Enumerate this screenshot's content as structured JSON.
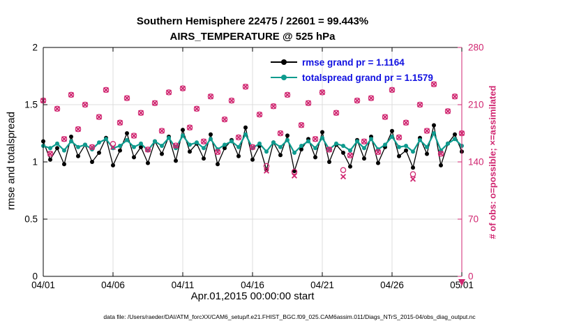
{
  "title": {
    "line1": "Southern Hemisphere 22475 / 22601 = 99.443%",
    "line2": "AIRS_TEMPERATURE @ 525 hPa"
  },
  "caption": "data file: /Users/raeder/DAI/ATM_forcXX/CAM6_setup/f.e21.FHIST_BGC.f09_025.CAM6assim.011/Diags_NTrS_2015-04/obs_diag_output.nc",
  "legend": [
    {
      "label": "rmse grand pr = 1.1164",
      "color": "#000000",
      "marker": "filled-circle"
    },
    {
      "label": "totalspread grand pr = 1.1579",
      "color": "#0e9b8e",
      "marker": "filled-circle"
    }
  ],
  "colors": {
    "background": "#ffffff",
    "grid": "#dcdcdc",
    "axis": "#000000",
    "rmse": "#000000",
    "totalspread": "#0e9b8e",
    "obs": "#d02670",
    "legend_text": "#1010e0"
  },
  "chart_data": {
    "type": "line",
    "title": "Southern Hemisphere 22475 / 22601 = 99.443%",
    "subtitle": "AIRS_TEMPERATURE @ 525 hPa",
    "grid": true,
    "legend_position": "top-center-inside",
    "x_axis": {
      "label": "Apr.01,2015 00:00:00 start",
      "range": [
        1,
        31
      ],
      "ticks": [
        1,
        6,
        11,
        16,
        21,
        26,
        31
      ],
      "tick_labels": [
        "04/01",
        "04/06",
        "04/11",
        "04/16",
        "04/21",
        "04/26",
        "05/01"
      ]
    },
    "y_left": {
      "label": "rmse and totalspread",
      "range": [
        0,
        2
      ],
      "ticks": [
        0,
        0.5,
        1,
        1.5,
        2
      ],
      "tick_labels": [
        "0",
        "0.5",
        "1",
        "1.5",
        "2"
      ]
    },
    "y_right": {
      "label": "# of obs: o=possible; ×=assimilated",
      "range": [
        0,
        280
      ],
      "ticks": [
        0,
        70,
        140,
        210,
        280
      ],
      "tick_labels": [
        "0",
        "70",
        "140",
        "210",
        "280"
      ],
      "color": "#d02670"
    },
    "x": {
      "start": 1,
      "step": 0.5,
      "count": 61
    },
    "series": [
      {
        "name": "rmse",
        "axis": "left",
        "color": "#000000",
        "marker": "filled-circle",
        "grand_mean": 1.1164,
        "values": [
          1.18,
          1.02,
          1.12,
          0.98,
          1.22,
          1.05,
          1.15,
          1.0,
          1.08,
          1.21,
          0.97,
          1.1,
          1.25,
          1.04,
          1.13,
          0.99,
          1.18,
          1.07,
          1.22,
          1.01,
          1.28,
          1.09,
          1.16,
          1.03,
          1.24,
          0.98,
          1.12,
          1.19,
          1.05,
          1.3,
          1.02,
          1.14,
          0.93,
          1.17,
          1.06,
          1.23,
          0.92,
          1.11,
          1.2,
          1.04,
          1.26,
          1.0,
          1.15,
          1.08,
          0.96,
          1.19,
          1.03,
          1.22,
          0.99,
          1.13,
          1.27,
          1.05,
          1.1,
          0.95,
          1.21,
          1.07,
          1.32,
          0.97,
          1.16,
          1.24,
          1.09
        ]
      },
      {
        "name": "totalspread",
        "axis": "left",
        "color": "#0e9b8e",
        "marker": "filled-circle",
        "grand_mean": 1.1579,
        "values": [
          1.14,
          1.12,
          1.16,
          1.1,
          1.18,
          1.13,
          1.15,
          1.11,
          1.17,
          1.2,
          1.12,
          1.14,
          1.19,
          1.13,
          1.16,
          1.1,
          1.18,
          1.14,
          1.21,
          1.12,
          1.23,
          1.15,
          1.17,
          1.12,
          1.2,
          1.11,
          1.15,
          1.18,
          1.13,
          1.24,
          1.12,
          1.16,
          1.09,
          1.17,
          1.13,
          1.19,
          1.08,
          1.14,
          1.18,
          1.12,
          1.21,
          1.11,
          1.16,
          1.14,
          1.1,
          1.18,
          1.12,
          1.2,
          1.11,
          1.15,
          1.22,
          1.13,
          1.14,
          1.09,
          1.19,
          1.13,
          1.25,
          1.1,
          1.16,
          1.2,
          1.14
        ]
      },
      {
        "name": "possible",
        "axis": "right",
        "color": "#d02670",
        "marker": "open-circle",
        "total": 22601,
        "values": [
          215,
          150,
          205,
          168,
          222,
          180,
          210,
          158,
          195,
          228,
          162,
          188,
          218,
          172,
          200,
          155,
          212,
          178,
          225,
          160,
          230,
          182,
          205,
          165,
          220,
          152,
          192,
          215,
          170,
          232,
          158,
          198,
          135,
          208,
          175,
          222,
          128,
          185,
          212,
          168,
          225,
          155,
          200,
          130,
          148,
          215,
          165,
          218,
          152,
          195,
          228,
          170,
          188,
          125,
          210,
          178,
          235,
          150,
          202,
          220,
          175
        ]
      },
      {
        "name": "assimilated",
        "axis": "right",
        "color": "#d02670",
        "marker": "x-cross",
        "total": 22475,
        "values": [
          215,
          150,
          205,
          168,
          222,
          180,
          210,
          158,
          195,
          228,
          158,
          188,
          218,
          172,
          200,
          155,
          212,
          178,
          225,
          160,
          230,
          182,
          205,
          165,
          220,
          152,
          192,
          215,
          170,
          232,
          158,
          198,
          129,
          208,
          175,
          222,
          123,
          185,
          212,
          168,
          225,
          155,
          200,
          122,
          148,
          215,
          165,
          218,
          152,
          195,
          228,
          170,
          188,
          119,
          210,
          178,
          235,
          150,
          202,
          220,
          175
        ]
      }
    ]
  }
}
